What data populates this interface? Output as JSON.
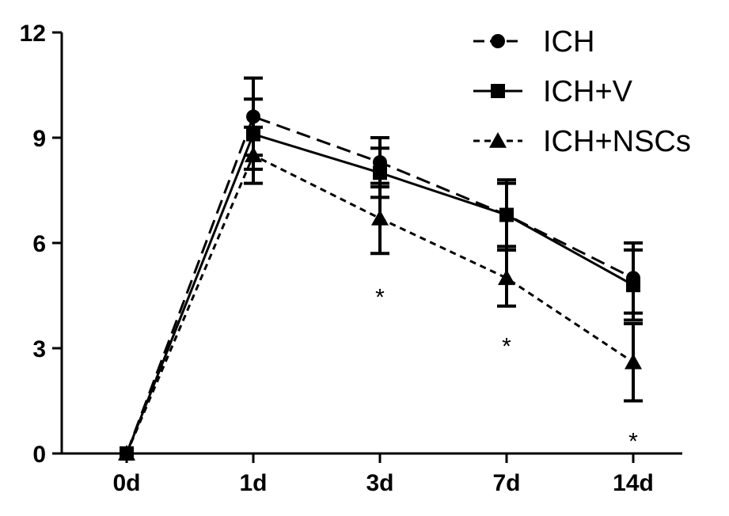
{
  "chart_data": {
    "type": "line",
    "categories": [
      "0d",
      "1d",
      "3d",
      "7d",
      "14d"
    ],
    "ylim": [
      0,
      12
    ],
    "yticks": [
      "0",
      "3",
      "6",
      "9",
      "12"
    ],
    "grid": false,
    "legend_position": "top-right",
    "series": [
      {
        "name": "ICH",
        "marker": "circle",
        "dash": "dashed",
        "values": [
          0,
          9.6,
          8.3,
          6.8,
          5.0
        ],
        "errors": [
          0,
          1.1,
          0.7,
          0.9,
          1.0
        ]
      },
      {
        "name": "ICH+V",
        "marker": "square",
        "dash": "solid",
        "values": [
          0,
          9.1,
          8.0,
          6.8,
          4.8
        ],
        "errors": [
          0,
          1.0,
          0.7,
          1.0,
          1.0
        ]
      },
      {
        "name": "ICH+NSCs",
        "marker": "triangle",
        "dash": "dotted",
        "values": [
          0,
          8.5,
          6.7,
          5.0,
          2.6
        ],
        "errors": [
          0,
          0.8,
          1.0,
          0.8,
          1.1
        ]
      }
    ],
    "annotations": [
      {
        "x": "3d",
        "y": 4.5,
        "text": "*"
      },
      {
        "x": "7d",
        "y": 3.1,
        "text": "*"
      },
      {
        "x": "14d",
        "y": 0.4,
        "text": "*"
      }
    ]
  }
}
